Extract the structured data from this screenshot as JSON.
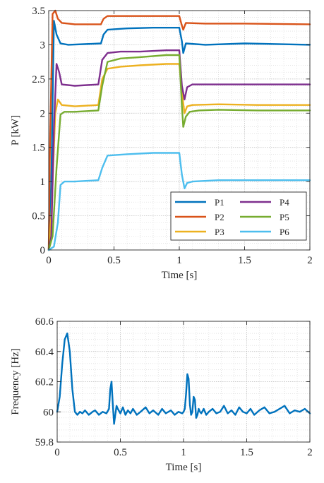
{
  "chart_data": [
    {
      "type": "line",
      "xlabel": "Time [s]",
      "ylabel": "P [kW]",
      "xlim": [
        0,
        2
      ],
      "ylim": [
        0,
        3.5
      ],
      "xticks": [
        "0",
        "0.5",
        "1",
        "1.5",
        "2"
      ],
      "yticks": [
        "0",
        "0.5",
        "1",
        "1.5",
        "2",
        "2.5",
        "3",
        "3.5"
      ],
      "grid": true,
      "legend": "bottom-right",
      "series": [
        {
          "name": "P1",
          "color": "#0072BD",
          "x": [
            0,
            0.02,
            0.04,
            0.06,
            0.09,
            0.15,
            0.4,
            0.42,
            0.45,
            0.6,
            0.8,
            1.0,
            1.02,
            1.03,
            1.05,
            1.2,
            1.5,
            2.0
          ],
          "values": [
            0,
            1.0,
            3.35,
            3.15,
            3.02,
            3.0,
            3.02,
            3.15,
            3.22,
            3.24,
            3.25,
            3.25,
            3.05,
            2.88,
            3.02,
            3.0,
            3.02,
            3.0
          ]
        },
        {
          "name": "P2",
          "color": "#D95319",
          "x": [
            0,
            0.01,
            0.03,
            0.05,
            0.07,
            0.1,
            0.2,
            0.4,
            0.42,
            0.45,
            0.6,
            0.8,
            1.0,
            1.02,
            1.03,
            1.05,
            1.2,
            1.5,
            2.0
          ],
          "values": [
            0,
            1.5,
            3.45,
            3.5,
            3.38,
            3.32,
            3.3,
            3.3,
            3.38,
            3.42,
            3.42,
            3.42,
            3.42,
            3.28,
            3.22,
            3.32,
            3.31,
            3.31,
            3.3
          ]
        },
        {
          "name": "P3",
          "color": "#EDB120",
          "x": [
            0,
            0.02,
            0.05,
            0.07,
            0.1,
            0.2,
            0.38,
            0.41,
            0.45,
            0.55,
            0.7,
            0.9,
            1.0,
            1.02,
            1.04,
            1.06,
            1.1,
            1.3,
            1.6,
            2.0
          ],
          "values": [
            0,
            0.5,
            2.0,
            2.2,
            2.12,
            2.1,
            2.12,
            2.5,
            2.65,
            2.68,
            2.7,
            2.72,
            2.72,
            2.3,
            2.0,
            2.1,
            2.12,
            2.13,
            2.12,
            2.12
          ]
        },
        {
          "name": "P4",
          "color": "#7E2F8E",
          "x": [
            0,
            0.02,
            0.04,
            0.06,
            0.08,
            0.1,
            0.2,
            0.38,
            0.41,
            0.45,
            0.55,
            0.7,
            0.9,
            1.0,
            1.02,
            1.04,
            1.06,
            1.1,
            1.3,
            1.6,
            2.0
          ],
          "values": [
            0,
            0.2,
            1.8,
            2.72,
            2.6,
            2.42,
            2.4,
            2.42,
            2.78,
            2.88,
            2.9,
            2.9,
            2.92,
            2.92,
            2.4,
            2.2,
            2.38,
            2.42,
            2.42,
            2.42,
            2.42
          ]
        },
        {
          "name": "P5",
          "color": "#77AC30",
          "x": [
            0,
            0.03,
            0.06,
            0.09,
            0.12,
            0.2,
            0.38,
            0.41,
            0.45,
            0.55,
            0.7,
            0.9,
            1.0,
            1.02,
            1.03,
            1.05,
            1.08,
            1.15,
            1.3,
            1.6,
            2.0
          ],
          "values": [
            0,
            0.2,
            1.2,
            1.98,
            2.02,
            2.02,
            2.04,
            2.4,
            2.75,
            2.8,
            2.82,
            2.85,
            2.85,
            2.1,
            1.8,
            1.95,
            2.02,
            2.04,
            2.05,
            2.04,
            2.04
          ]
        },
        {
          "name": "P6",
          "color": "#4DBEEE",
          "x": [
            0,
            0.04,
            0.07,
            0.09,
            0.12,
            0.2,
            0.38,
            0.41,
            0.45,
            0.6,
            0.8,
            1.0,
            1.02,
            1.04,
            1.06,
            1.1,
            1.3,
            1.6,
            2.0
          ],
          "values": [
            0,
            0.05,
            0.4,
            0.95,
            1.0,
            1.0,
            1.02,
            1.2,
            1.38,
            1.4,
            1.42,
            1.42,
            1.1,
            0.9,
            0.98,
            1.0,
            1.02,
            1.02,
            1.02
          ]
        }
      ]
    },
    {
      "type": "line",
      "xlabel": "Time [s]",
      "ylabel": "Frequency [Hz]",
      "xlim": [
        0,
        2
      ],
      "ylim": [
        59.8,
        60.6
      ],
      "xticks": [
        "0",
        "0.5",
        "1",
        "1.5",
        "2"
      ],
      "yticks": [
        "59.8",
        "60",
        "60.2",
        "60.4",
        "60.6"
      ],
      "grid": true,
      "series": [
        {
          "color": "#0072BD",
          "x": [
            0,
            0.02,
            0.04,
            0.06,
            0.08,
            0.1,
            0.12,
            0.14,
            0.16,
            0.18,
            0.2,
            0.22,
            0.25,
            0.28,
            0.3,
            0.33,
            0.36,
            0.39,
            0.41,
            0.42,
            0.43,
            0.44,
            0.45,
            0.46,
            0.47,
            0.48,
            0.5,
            0.52,
            0.54,
            0.56,
            0.58,
            0.6,
            0.63,
            0.66,
            0.7,
            0.73,
            0.76,
            0.8,
            0.83,
            0.86,
            0.9,
            0.93,
            0.96,
            0.99,
            1.0,
            1.01,
            1.02,
            1.03,
            1.04,
            1.05,
            1.06,
            1.07,
            1.08,
            1.09,
            1.1,
            1.11,
            1.12,
            1.13,
            1.14,
            1.16,
            1.18,
            1.2,
            1.23,
            1.26,
            1.29,
            1.32,
            1.35,
            1.38,
            1.41,
            1.44,
            1.47,
            1.5,
            1.53,
            1.56,
            1.6,
            1.64,
            1.68,
            1.72,
            1.76,
            1.8,
            1.84,
            1.88,
            1.92,
            1.96,
            2.0
          ],
          "values": [
            60,
            60.1,
            60.32,
            60.48,
            60.52,
            60.4,
            60.15,
            60.0,
            59.98,
            60.0,
            59.99,
            60.01,
            59.98,
            60.0,
            60.01,
            59.98,
            60.0,
            59.99,
            60.02,
            60.15,
            60.2,
            60.05,
            59.92,
            59.98,
            60.04,
            60.02,
            59.99,
            60.03,
            59.98,
            60.01,
            59.99,
            60.02,
            59.98,
            60.0,
            60.03,
            59.99,
            60.01,
            59.98,
            60.02,
            59.99,
            60.01,
            59.98,
            60.0,
            59.99,
            60.0,
            60.02,
            60.12,
            60.25,
            60.22,
            60.05,
            59.98,
            60.0,
            60.1,
            60.08,
            59.96,
            59.98,
            60.02,
            60.0,
            59.99,
            60.02,
            59.98,
            60.0,
            60.02,
            59.99,
            60.0,
            60.04,
            59.99,
            60.01,
            59.98,
            60.03,
            60.0,
            59.99,
            60.02,
            59.98,
            60.01,
            60.03,
            59.99,
            60.0,
            60.02,
            60.04,
            59.99,
            60.01,
            60.0,
            60.02,
            59.99
          ]
        }
      ]
    }
  ]
}
